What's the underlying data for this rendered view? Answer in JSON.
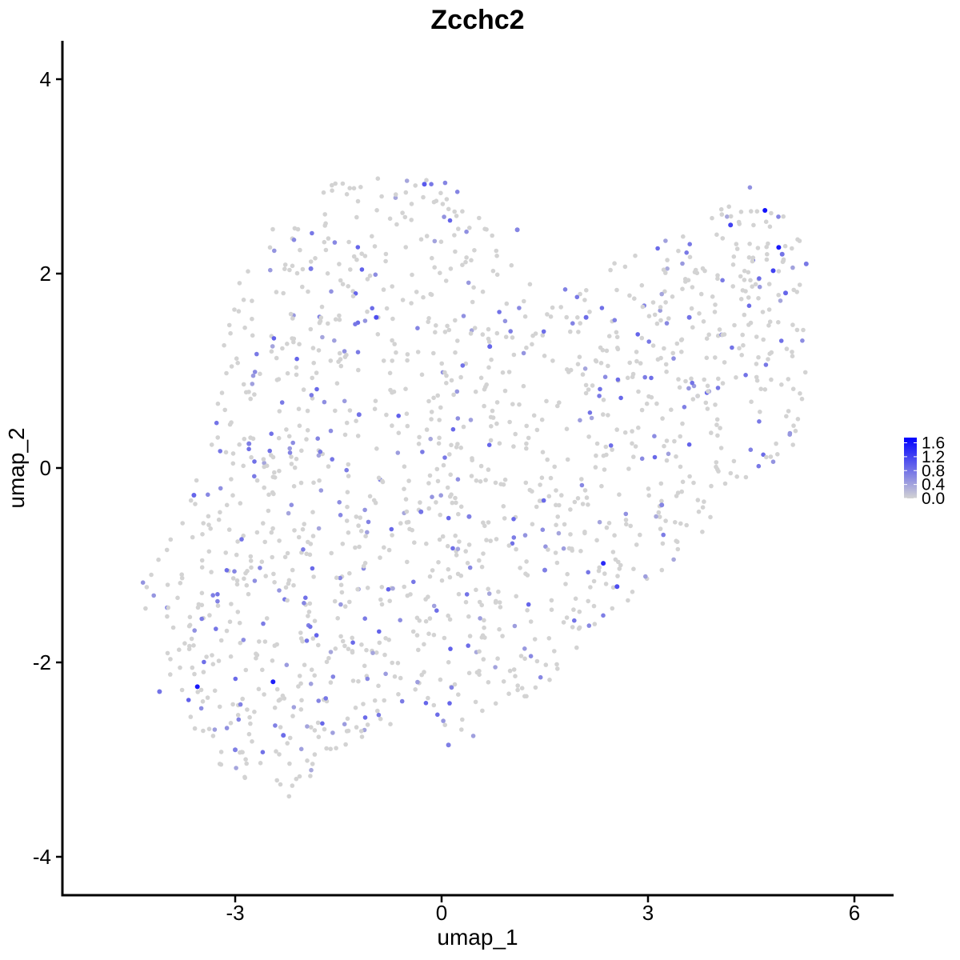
{
  "chart_data": {
    "type": "scatter",
    "title": "Zcchc2",
    "xlabel": "umap_1",
    "ylabel": "umap_2",
    "xlim": [
      -5.4,
      6.6
    ],
    "ylim": [
      -4.4,
      4.4
    ],
    "x_ticks": [
      -3,
      0,
      3,
      6
    ],
    "x_tick_labels": [
      "-3",
      "0",
      "3",
      "6"
    ],
    "y_ticks": [
      -4,
      -2,
      0,
      2,
      4
    ],
    "y_tick_labels": [
      "-4",
      "-2",
      "0",
      "2",
      "4"
    ],
    "grid": false,
    "legend": {
      "placement": "right",
      "type": "colorbar",
      "ticks": [
        0.0,
        0.4,
        0.8,
        1.2,
        1.6
      ],
      "tick_labels": [
        "0.0",
        "0.4",
        "0.8",
        "1.2",
        "1.6"
      ],
      "range": [
        0,
        1.75
      ]
    },
    "colors": {
      "low": "#d3d3d3",
      "high": "#0000ff"
    },
    "series": [
      {
        "points": [
          {
            "x": 4.7,
            "y": 2.65,
            "v": 1.6
          },
          {
            "x": 4.9,
            "y": 2.27,
            "v": 1.55
          },
          {
            "x": -3.55,
            "y": -2.25,
            "v": 1.55
          },
          {
            "x": -2.45,
            "y": -2.2,
            "v": 1.5
          },
          {
            "x": 2.35,
            "y": -0.98,
            "v": 1.4
          },
          {
            "x": 4.82,
            "y": 2.03,
            "v": 1.2
          },
          {
            "x": -0.95,
            "y": 1.55,
            "v": 1.1
          },
          {
            "x": -0.25,
            "y": 2.92,
            "v": 1.0
          },
          {
            "x": 4.2,
            "y": 2.5,
            "v": 1.2
          },
          {
            "x": 2.55,
            "y": -1.22,
            "v": 1.1
          },
          {
            "x": 5.0,
            "y": 1.8,
            "v": 0.9
          },
          {
            "x": 4.95,
            "y": 2.2,
            "v": 0.8
          },
          {
            "x": -3.6,
            "y": -0.28,
            "v": 0.9
          },
          {
            "x": -2.3,
            "y": -2.75,
            "v": 0.85
          },
          {
            "x": 0.7,
            "y": 1.25,
            "v": 0.9
          },
          {
            "x": 1.5,
            "y": -1.05,
            "v": 0.7
          },
          {
            "x": 3.6,
            "y": 1.55,
            "v": 0.8
          },
          {
            "x": -1.9,
            "y": 2.05,
            "v": 0.75
          },
          {
            "x": -2.8,
            "y": 0.25,
            "v": 0.7
          },
          {
            "x": 0.1,
            "y": -2.85,
            "v": 0.7
          },
          {
            "x": 5.3,
            "y": 2.1,
            "v": 0.75
          },
          {
            "x": -4.1,
            "y": -2.3,
            "v": 0.8
          },
          {
            "x": 2.1,
            "y": 1.55,
            "v": 0.85
          },
          {
            "x": -1.2,
            "y": 0.55,
            "v": 0.8
          },
          {
            "x": 0.4,
            "y": -0.5,
            "v": 0.7
          },
          {
            "x": 1.1,
            "y": 2.45,
            "v": 0.65
          },
          {
            "x": -3.0,
            "y": -2.9,
            "v": 0.7
          },
          {
            "x": 3.2,
            "y": -0.38,
            "v": 0.65
          },
          {
            "x": -0.3,
            "y": -0.45,
            "v": 0.8
          }
        ]
      }
    ]
  }
}
